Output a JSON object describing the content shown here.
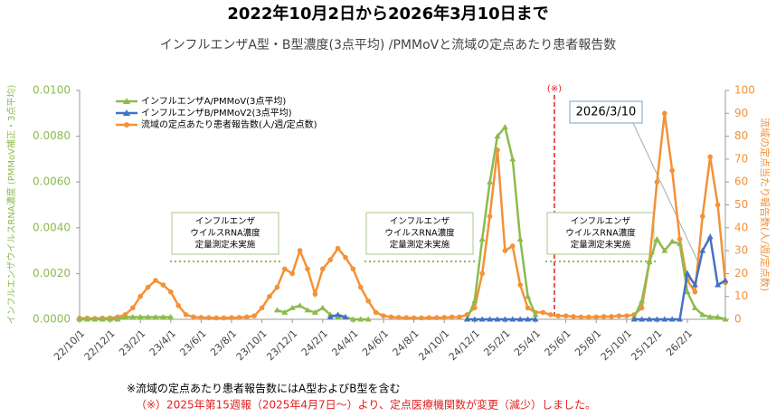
{
  "chart_data": {
    "type": "line",
    "title": "2022年10月2日から2026年3月10日まで",
    "subtitle": "インフルエンザA型・B型濃度(3点平均) /PMMoVと流域の定点あたり患者報告数",
    "y_label": "インフルエンザウイルスRNA濃度 (PMMoV補正・3点平均)",
    "y2_label": "流域の定点当たり報告数(人/週/定点数)",
    "categories": [
      "22/10/1",
      null,
      null,
      null,
      "22/12/1",
      null,
      null,
      null,
      "23/2/1",
      null,
      null,
      null,
      "23/4/1",
      null,
      null,
      null,
      "23/6/1",
      null,
      null,
      null,
      "23/8/1",
      null,
      null,
      null,
      "23/10/1",
      null,
      null,
      null,
      "23/12/1",
      null,
      null,
      null,
      "24/2/1",
      null,
      null,
      null,
      "24/4/1",
      null,
      null,
      null,
      "24/6/1",
      null,
      null,
      null,
      "24/8/1",
      null,
      null,
      null,
      "24/10/1",
      null,
      null,
      null,
      "24/12/1",
      null,
      null,
      null,
      "25/2/1",
      null,
      null,
      null,
      "25/4/1",
      null,
      null,
      null,
      "25/6/1",
      null,
      null,
      null,
      "25/8/1",
      null,
      null,
      null,
      "25/10/1",
      null,
      null,
      null,
      "25/12/1",
      null,
      null,
      null,
      "26/2/1",
      null,
      null,
      null,
      null,
      null
    ],
    "ylim": [
      0,
      0.01
    ],
    "yticks": [
      {
        "value": 0,
        "label": "0.0000"
      },
      {
        "value": 0.002,
        "label": "0.0020"
      },
      {
        "value": 0.004,
        "label": "0.0040"
      },
      {
        "value": 0.006,
        "label": "0.0060"
      },
      {
        "value": 0.008,
        "label": "0.0080"
      },
      {
        "value": 0.01,
        "label": "0.0100"
      }
    ],
    "y2lim": [
      0,
      100
    ],
    "y2ticks": [
      0,
      10,
      20,
      30,
      40,
      50,
      60,
      70,
      80,
      90,
      100
    ],
    "series": [
      {
        "name": "インフルエンザA/PMMoV(3点平均)",
        "color": "#8dbb4e",
        "marker": "triangle",
        "values": [
          0,
          0,
          0,
          0,
          0,
          0,
          0.0001,
          0.0001,
          0.0001,
          0.0001,
          0.0001,
          0.0001,
          0.0001,
          null,
          null,
          null,
          null,
          null,
          null,
          null,
          null,
          null,
          null,
          null,
          null,
          null,
          0.0004,
          0.0003,
          0.0005,
          0.0006,
          0.0004,
          0.0003,
          0.0005,
          0.0002,
          0.0001,
          0.0001,
          0,
          0,
          0,
          null,
          null,
          null,
          null,
          null,
          null,
          null,
          null,
          null,
          null,
          null,
          null,
          0,
          0.0008,
          0.0035,
          0.006,
          0.008,
          0.0084,
          0.007,
          0.0035,
          0.001,
          0.0002,
          null,
          null,
          null,
          null,
          null,
          null,
          null,
          null,
          null,
          null,
          null,
          null,
          0.0001,
          0.0008,
          0.0025,
          0.0035,
          0.003,
          0.0034,
          0.0033,
          0.0012,
          0.0005,
          0.0002,
          0.0001,
          0.0001,
          0
        ]
      },
      {
        "name": "インフルエンザB/PMMoV2(3点平均)",
        "color": "#4472c4",
        "marker": "triangle",
        "values": [
          null,
          null,
          null,
          null,
          null,
          null,
          null,
          null,
          null,
          null,
          null,
          null,
          null,
          null,
          null,
          null,
          null,
          null,
          null,
          null,
          null,
          null,
          null,
          null,
          null,
          null,
          null,
          null,
          null,
          null,
          null,
          null,
          null,
          0.0001,
          0.0002,
          0.0001,
          null,
          null,
          null,
          null,
          null,
          null,
          null,
          null,
          null,
          null,
          null,
          null,
          null,
          null,
          null,
          0,
          0,
          0,
          0,
          0,
          0,
          0,
          0,
          0,
          0,
          null,
          null,
          null,
          null,
          null,
          null,
          null,
          null,
          null,
          null,
          null,
          null,
          0,
          0,
          0,
          0,
          0,
          0,
          0,
          0.002,
          0.0015,
          0.003,
          0.0036,
          0.0015,
          0.0017
        ]
      },
      {
        "name": "流域の定点あたり患者報告数(人/週/定点数)",
        "color": "#f39237",
        "marker": "circle",
        "axis": "y2",
        "values": [
          0.5,
          0.5,
          0.4,
          0.5,
          0.6,
          1,
          2,
          5,
          10,
          14,
          17,
          15,
          12,
          6,
          2,
          1,
          0.8,
          0.7,
          0.6,
          0.6,
          0.7,
          0.8,
          1,
          1.5,
          5,
          10,
          14,
          22,
          20,
          30,
          22,
          11,
          22,
          26,
          31,
          27,
          22,
          14,
          8,
          3,
          1.5,
          1,
          0.8,
          0.7,
          0.6,
          0.6,
          0.7,
          0.7,
          0.8,
          1,
          1,
          2,
          5,
          20,
          45,
          74,
          30,
          32,
          15,
          5,
          3,
          3,
          2,
          1.5,
          1.5,
          1.2,
          1,
          1,
          1,
          1.2,
          1.2,
          1.5,
          1.5,
          2,
          5,
          25,
          60,
          90,
          65,
          35,
          17,
          12,
          45,
          71,
          50,
          16
        ]
      }
    ],
    "annotations": {
      "marker": "(※)",
      "date": "2026/3/10",
      "gap_note": [
        "インフルエンザ",
        "ウイルスRNA濃度",
        "定量測定未実施"
      ]
    },
    "notes": [
      "※流域の定点あたり患者報告数にはA型およびB型を含む",
      "（※）2025年第15週報（2025年4月7日～）より、定点医療機関数が変更（減少）しました。"
    ]
  }
}
